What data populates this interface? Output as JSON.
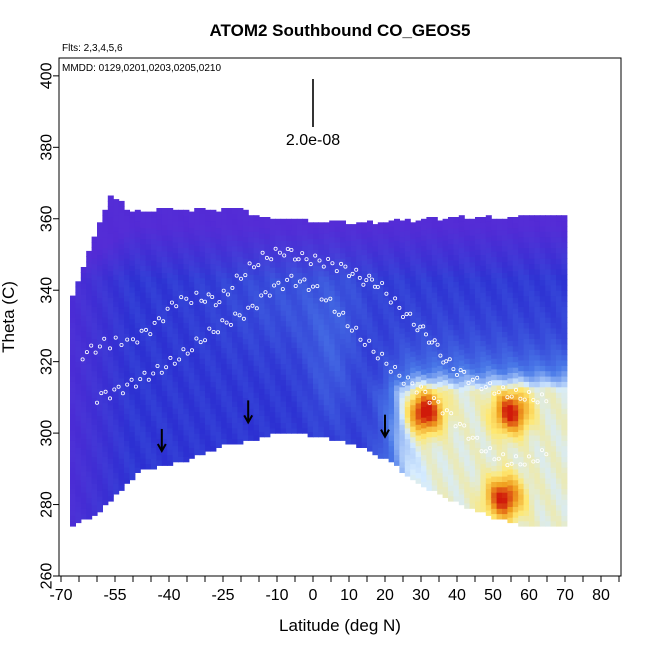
{
  "chart_data": {
    "type": "heatmap",
    "title": "ATOM2 Southbound CO_GEOS5",
    "flights_note": "Flts: 2,3,4,5,6",
    "dates_note": "MMDD: 0129,0201,0203,0205,0210",
    "xlabel": "Latitude (deg N)",
    "ylabel": "Theta (C)",
    "xlim": [
      -70,
      85
    ],
    "ylim": [
      260,
      405
    ],
    "x_ticks": [
      -70,
      -55,
      -40,
      -25,
      -10,
      0,
      10,
      20,
      30,
      40,
      50,
      60,
      70,
      80
    ],
    "y_ticks": [
      260,
      280,
      300,
      320,
      340,
      360,
      380,
      400
    ],
    "scale_label": "2.0e-08",
    "colors": {
      "low": "#2a2ad0",
      "upper_violet": "#5a2ad6",
      "mid_blue": "#4a7ae8",
      "pale": "#d6ecff",
      "yellow": "#ffe870",
      "orange": "#f0a020",
      "red": "#d01a0a"
    },
    "field_boundary": {
      "top": [
        [
          -67.5,
          335
        ],
        [
          -56,
          367
        ],
        [
          -52,
          362
        ],
        [
          -22,
          362
        ],
        [
          -10,
          359
        ],
        [
          10,
          358
        ],
        [
          30,
          359
        ],
        [
          50,
          360
        ],
        [
          70,
          360
        ],
        [
          70,
          345
        ]
      ],
      "bottom": [
        [
          -67.5,
          274
        ],
        [
          -60,
          278
        ],
        [
          -48,
          290
        ],
        [
          -35,
          293
        ],
        [
          -25,
          297
        ],
        [
          -15,
          299
        ],
        [
          -8,
          301
        ],
        [
          5,
          299
        ],
        [
          15,
          296
        ],
        [
          22,
          292
        ],
        [
          30,
          286
        ],
        [
          40,
          281
        ],
        [
          50,
          277
        ],
        [
          60,
          274
        ],
        [
          72,
          274
        ],
        [
          72,
          320
        ]
      ]
    },
    "hotspots": [
      {
        "lat": 31,
        "theta": 306,
        "level": "red"
      },
      {
        "lat": 55,
        "theta": 306,
        "level": "orange"
      },
      {
        "lat": 53,
        "theta": 282,
        "level": "orange"
      }
    ],
    "arrows": [
      {
        "lat": -42,
        "theta": 295
      },
      {
        "lat": -18,
        "theta": 303
      },
      {
        "lat": 20,
        "theta": 299
      }
    ],
    "flight_tracks": [
      [
        [
          -64,
          322
        ],
        [
          -58,
          325
        ],
        [
          -50,
          326
        ],
        [
          -44,
          330
        ],
        [
          -38,
          337
        ],
        [
          -31,
          338
        ],
        [
          -26,
          337
        ],
        [
          -20,
          344
        ],
        [
          -14,
          349
        ],
        [
          -8,
          351
        ],
        [
          -3,
          349
        ],
        [
          3,
          348
        ],
        [
          9,
          346
        ],
        [
          14,
          343
        ],
        [
          18,
          342
        ],
        [
          24,
          335
        ],
        [
          29,
          330
        ],
        [
          33,
          326
        ],
        [
          37,
          320
        ],
        [
          42,
          316
        ],
        [
          48,
          313
        ],
        [
          54,
          311
        ],
        [
          60,
          310
        ],
        [
          66,
          309
        ]
      ],
      [
        [
          -60,
          310
        ],
        [
          -54,
          312
        ],
        [
          -48,
          315
        ],
        [
          -42,
          318
        ],
        [
          -36,
          322
        ],
        [
          -30,
          327
        ],
        [
          -24,
          331
        ],
        [
          -18,
          334
        ],
        [
          -12,
          340
        ],
        [
          -6,
          343
        ],
        [
          0,
          341
        ],
        [
          6,
          335
        ],
        [
          12,
          328
        ],
        [
          18,
          322
        ],
        [
          24,
          316
        ],
        [
          30,
          312
        ],
        [
          36,
          307
        ],
        [
          42,
          301
        ],
        [
          48,
          295
        ],
        [
          54,
          292
        ],
        [
          60,
          292
        ],
        [
          66,
          295
        ]
      ]
    ]
  }
}
